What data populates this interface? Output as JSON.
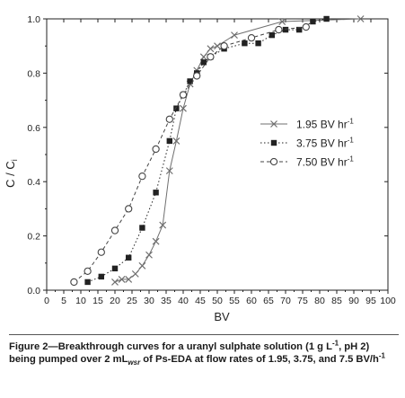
{
  "chart_data": {
    "type": "line",
    "xlabel": "BV",
    "ylabel": "C / C",
    "ylabel_sub": "i",
    "xlim": [
      0,
      100
    ],
    "ylim": [
      0,
      1.0
    ],
    "x_ticks": [
      0,
      5,
      10,
      15,
      20,
      25,
      30,
      35,
      40,
      45,
      50,
      55,
      60,
      65,
      70,
      75,
      80,
      85,
      90,
      95,
      100
    ],
    "y_ticks": [
      0.0,
      0.2,
      0.4,
      0.6,
      0.8,
      1.0
    ],
    "x_tick_labels": [
      "0",
      "5",
      "10",
      "15",
      "20",
      "25",
      "30",
      "35",
      "40",
      "45",
      "50",
      "55",
      "60",
      "65",
      "70",
      "75",
      "80",
      "85",
      "90",
      "95",
      "100"
    ],
    "y_tick_labels": [
      "0.0",
      "0.2",
      "0.4",
      "0.6",
      "0.8",
      "1.0"
    ],
    "legend_position": "right",
    "series": [
      {
        "name": "1.95 BV hr",
        "name_sup": "-1",
        "marker": "x",
        "line_style": "solid",
        "color": "#6f6f6f",
        "x": [
          20,
          22,
          24,
          26,
          28,
          30,
          32,
          34,
          36,
          38,
          40,
          42,
          44,
          46,
          48,
          50,
          55,
          69,
          92
        ],
        "y": [
          0.03,
          0.04,
          0.04,
          0.06,
          0.09,
          0.13,
          0.18,
          0.24,
          0.44,
          0.55,
          0.67,
          0.76,
          0.81,
          0.86,
          0.89,
          0.9,
          0.94,
          0.99,
          1.0
        ]
      },
      {
        "name": "3.75 BV hr",
        "name_sup": "-1",
        "marker": "square",
        "line_style": "dotted",
        "color": "#222222",
        "x": [
          12,
          16,
          20,
          24,
          28,
          32,
          36,
          38,
          40,
          42,
          44,
          46,
          48,
          52,
          58,
          62,
          66,
          70,
          74,
          78,
          82
        ],
        "y": [
          0.03,
          0.05,
          0.08,
          0.12,
          0.23,
          0.36,
          0.55,
          0.67,
          0.72,
          0.77,
          0.8,
          0.84,
          0.86,
          0.89,
          0.91,
          0.91,
          0.94,
          0.96,
          0.96,
          0.99,
          1.0
        ]
      },
      {
        "name": "7.50 BV hr",
        "name_sup": "-1",
        "marker": "circle",
        "line_style": "dashed",
        "color": "#444444",
        "x": [
          8,
          12,
          16,
          20,
          24,
          28,
          32,
          36,
          40,
          44,
          48,
          52,
          60,
          68,
          76
        ],
        "y": [
          0.03,
          0.07,
          0.14,
          0.22,
          0.3,
          0.42,
          0.52,
          0.63,
          0.72,
          0.79,
          0.86,
          0.9,
          0.93,
          0.96,
          0.97
        ]
      }
    ]
  },
  "caption": {
    "lead": "Figure 2—Breakthrough curves for a uranyl sulphate solution (1 g L",
    "sup1": "-1",
    "part2": ", pH 2) being pumped over 2 mL",
    "sub1": "wsr",
    "part3": " of Ps-EDA at flow rates of 1.95, 3.75, and 7.5 BV/h",
    "sup2": "-1"
  }
}
